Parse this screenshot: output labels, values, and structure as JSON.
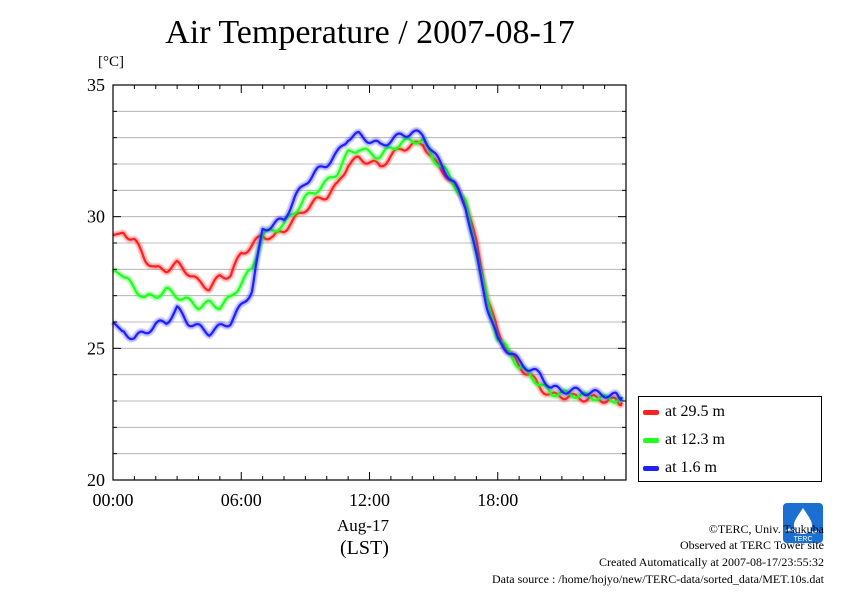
{
  "chart_data": {
    "type": "line",
    "title": "Air Temperature / 2007-08-17",
    "ylabel": "[°C]",
    "xlabel_date": "Aug-17",
    "xlabel": "(LST)",
    "ylim": [
      20,
      35
    ],
    "xlim": [
      0,
      24
    ],
    "yticks": [
      20,
      25,
      30,
      35
    ],
    "xticks": [
      0,
      6,
      12,
      18
    ],
    "xtick_labels": [
      "00:00",
      "06:00",
      "12:00",
      "18:00"
    ],
    "grid": true,
    "legend_position": "lower-right-outside",
    "x": [
      0,
      0.5,
      1,
      1.5,
      2,
      2.5,
      3,
      3.5,
      4,
      4.5,
      5,
      5.5,
      6,
      6.5,
      7,
      7.5,
      8,
      8.5,
      9,
      9.5,
      10,
      10.5,
      11,
      11.5,
      12,
      12.5,
      13,
      13.5,
      14,
      14.5,
      15,
      15.5,
      16,
      16.5,
      17,
      17.5,
      18,
      18.5,
      19,
      19.5,
      20,
      20.5,
      21,
      21.5,
      22,
      22.5,
      23,
      23.5,
      23.8
    ],
    "series": [
      {
        "name": "at 29.5 m",
        "color": "#ff2020",
        "values": [
          29.3,
          29.4,
          29.1,
          28.4,
          28.0,
          28.0,
          28.2,
          27.9,
          27.5,
          27.3,
          27.7,
          27.8,
          28.6,
          28.9,
          29.3,
          29.2,
          29.5,
          29.9,
          30.3,
          30.6,
          30.8,
          31.2,
          32.0,
          32.2,
          32.1,
          31.9,
          32.3,
          32.6,
          32.7,
          32.8,
          32.1,
          31.7,
          31.1,
          30.6,
          29.0,
          27.0,
          25.6,
          24.9,
          24.3,
          24.0,
          23.5,
          23.2,
          23.2,
          23.15,
          23.1,
          23.1,
          23.05,
          23.0,
          22.95
        ]
      },
      {
        "name": "at 12.3 m",
        "color": "#20ff20",
        "values": [
          28.0,
          27.7,
          27.3,
          26.9,
          27.0,
          27.2,
          27.0,
          26.8,
          26.6,
          26.7,
          26.6,
          26.9,
          27.5,
          28.0,
          29.3,
          29.5,
          29.7,
          30.2,
          30.7,
          31.0,
          31.3,
          31.7,
          32.4,
          32.6,
          32.4,
          32.3,
          32.6,
          32.8,
          32.9,
          32.9,
          32.2,
          31.8,
          31.2,
          30.5,
          28.7,
          26.8,
          25.4,
          24.9,
          24.3,
          24.0,
          23.6,
          23.3,
          23.3,
          23.25,
          23.2,
          23.15,
          23.1,
          23.05,
          23.0
        ]
      },
      {
        "name": "at 1.6 m",
        "color": "#2020ff",
        "values": [
          26.0,
          25.6,
          25.4,
          25.6,
          25.9,
          26.0,
          26.5,
          26.0,
          25.8,
          25.6,
          25.8,
          26.0,
          26.6,
          27.2,
          29.5,
          29.7,
          29.9,
          30.7,
          31.3,
          31.7,
          32.0,
          32.4,
          33.0,
          33.1,
          32.9,
          32.7,
          32.9,
          33.1,
          33.2,
          33.1,
          32.4,
          31.8,
          31.2,
          30.4,
          28.5,
          26.6,
          25.3,
          24.9,
          24.5,
          24.2,
          24.0,
          23.5,
          23.4,
          23.4,
          23.35,
          23.3,
          23.25,
          23.2,
          23.15
        ]
      }
    ]
  },
  "credits": {
    "copyright": "©TERC, Univ. Tsukuba",
    "observed": "Observed at TERC Tower site",
    "created": "Created Automatically at 2007-08-17/23:55:32",
    "source": "Data source : /home/hojyo/new/TERC-data/sorted_data/MET.10s.dat",
    "logo_text": "TERC"
  }
}
